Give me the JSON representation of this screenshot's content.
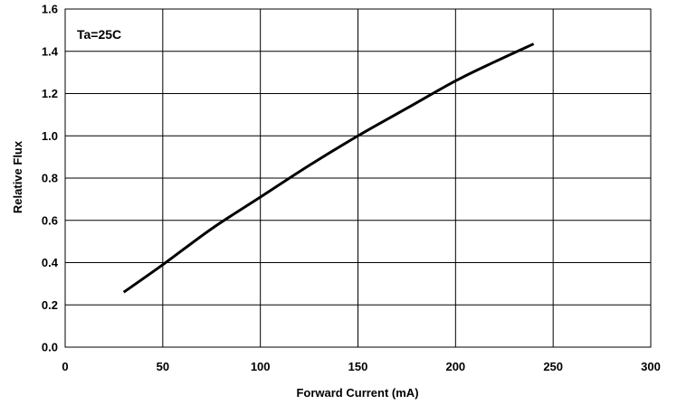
{
  "chart_data": {
    "type": "line",
    "title": "",
    "xlabel": "Forward Current (mA)",
    "ylabel": "Relative Flux",
    "xlim": [
      0,
      300
    ],
    "ylim": [
      0.0,
      1.6
    ],
    "x_ticks": [
      "0",
      "50",
      "100",
      "150",
      "200",
      "250",
      "300"
    ],
    "y_ticks": [
      "0.0",
      "0.2",
      "0.4",
      "0.6",
      "0.8",
      "1.0",
      "1.2",
      "1.4",
      "1.6"
    ],
    "grid": true,
    "annotation": "Ta=25C",
    "line_color": "#000000",
    "series": [
      {
        "x": [
          30,
          50,
          75,
          100,
          125,
          150,
          175,
          200,
          220,
          240
        ],
        "y": [
          0.26,
          0.39,
          0.56,
          0.71,
          0.86,
          1.0,
          1.13,
          1.26,
          1.35,
          1.435
        ]
      }
    ]
  }
}
